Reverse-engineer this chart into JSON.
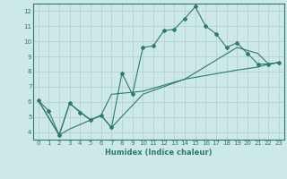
{
  "title": "",
  "xlabel": "Humidex (Indice chaleur)",
  "bg_color": "#cde8e8",
  "grid_color": "#b8d4d4",
  "line_color": "#2d7a6e",
  "xlim": [
    -0.5,
    23.5
  ],
  "ylim": [
    3.5,
    12.5
  ],
  "xticks": [
    0,
    1,
    2,
    3,
    4,
    5,
    6,
    7,
    8,
    9,
    10,
    11,
    12,
    13,
    14,
    15,
    16,
    17,
    18,
    19,
    20,
    21,
    22,
    23
  ],
  "yticks": [
    4,
    5,
    6,
    7,
    8,
    9,
    10,
    11,
    12
  ],
  "line1_x": [
    0,
    1,
    2,
    3,
    4,
    5,
    6,
    7,
    8,
    9,
    10,
    11,
    12,
    13,
    14,
    15,
    16,
    17,
    18,
    19,
    20,
    21,
    22,
    23
  ],
  "line1_y": [
    6.1,
    5.4,
    3.8,
    5.9,
    5.3,
    4.8,
    5.1,
    4.3,
    7.9,
    6.5,
    9.6,
    9.7,
    10.7,
    10.8,
    11.5,
    12.3,
    11.0,
    10.5,
    9.6,
    9.9,
    9.2,
    8.5,
    8.5,
    8.6
  ],
  "line2_x": [
    0,
    2,
    3,
    5,
    6,
    7,
    10,
    14,
    19,
    21,
    22,
    23
  ],
  "line2_y": [
    6.1,
    3.8,
    4.2,
    4.8,
    5.1,
    6.5,
    6.7,
    7.5,
    8.1,
    8.3,
    8.5,
    8.6
  ],
  "line3_x": [
    0,
    2,
    3,
    5,
    6,
    7,
    10,
    14,
    19,
    21,
    22,
    23
  ],
  "line3_y": [
    6.1,
    3.8,
    5.9,
    4.8,
    5.1,
    4.3,
    6.5,
    7.5,
    9.6,
    9.2,
    8.5,
    8.6
  ]
}
